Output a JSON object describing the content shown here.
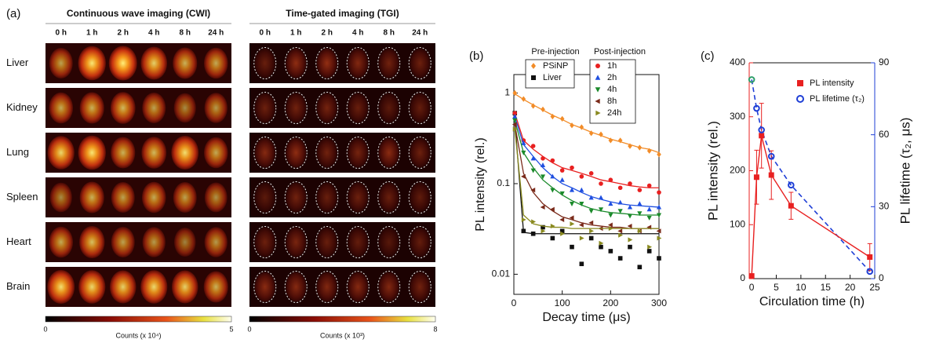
{
  "panel_a": {
    "label": "(a)",
    "times": [
      "0 h",
      "1 h",
      "2 h",
      "4 h",
      "8 h",
      "24 h"
    ],
    "organs": [
      "Liver",
      "Kidney",
      "Lung",
      "Spleen",
      "Heart",
      "Brain"
    ],
    "groups": [
      {
        "title": "Continuous wave imaging (CWI)",
        "colorbar_min": "0",
        "colorbar_max": "5",
        "colorbar_label": "Counts (x 10⁴)"
      },
      {
        "title": "Time-gated imaging (TGI)",
        "colorbar_min": "0",
        "colorbar_max": "8",
        "colorbar_label": "Counts (x 10³)"
      }
    ]
  },
  "chart_data": [
    {
      "type": "scatter",
      "panel_label": "(b)",
      "x_label": "Decay time (μs)",
      "y_label": "PL intensity (rel.)",
      "log_y": true,
      "legend_titles": [
        "Pre-injection",
        "Post-injection"
      ],
      "xlim": [
        0,
        300
      ],
      "xticks": [
        0,
        100,
        200,
        300
      ],
      "ylim": [
        0.006,
        1.6
      ],
      "yticks": [
        0.01,
        0.1,
        1
      ],
      "x": [
        2,
        20,
        40,
        60,
        80,
        100,
        120,
        140,
        160,
        180,
        200,
        220,
        240,
        260,
        280,
        300
      ],
      "series": [
        {
          "name": "PSiNP",
          "color": "#f28c28",
          "marker": "diamond",
          "values": [
            1,
            0.86,
            0.72,
            0.66,
            0.55,
            0.52,
            0.44,
            0.42,
            0.36,
            0.35,
            0.3,
            0.3,
            0.26,
            0.25,
            0.23,
            0.21
          ],
          "fit": [
            0.98,
            0.85,
            0.74,
            0.65,
            0.57,
            0.51,
            0.45,
            0.41,
            0.37,
            0.34,
            0.31,
            0.29,
            0.27,
            0.25,
            0.24,
            0.22
          ]
        },
        {
          "name": "Liver",
          "color": "#111111",
          "marker": "square",
          "values": [
            0.6,
            0.03,
            0.028,
            0.033,
            0.025,
            0.03,
            0.02,
            0.013,
            0.025,
            0.02,
            0.018,
            0.015,
            0.02,
            0.012,
            0.018,
            0.015
          ],
          "fit": [
            0.5,
            0.029,
            0.028,
            0.028,
            0.028,
            0.028,
            0.028,
            0.028,
            0.028,
            0.028,
            0.028,
            0.028,
            0.028,
            0.028,
            0.028,
            0.028
          ]
        },
        {
          "name": "1h",
          "color": "#e82020",
          "marker": "circle",
          "values": [
            0.6,
            0.3,
            0.26,
            0.19,
            0.18,
            0.14,
            0.15,
            0.12,
            0.13,
            0.1,
            0.11,
            0.09,
            0.1,
            0.085,
            0.095,
            0.08
          ],
          "fit": [
            0.6,
            0.3,
            0.24,
            0.2,
            0.17,
            0.15,
            0.14,
            0.13,
            0.12,
            0.11,
            0.105,
            0.1,
            0.095,
            0.092,
            0.09,
            0.09
          ]
        },
        {
          "name": "2h",
          "color": "#1f4fe0",
          "marker": "triangle-up",
          "values": [
            0.55,
            0.28,
            0.19,
            0.16,
            0.12,
            0.11,
            0.085,
            0.085,
            0.07,
            0.07,
            0.06,
            0.062,
            0.055,
            0.06,
            0.052,
            0.055
          ],
          "fit": [
            0.55,
            0.27,
            0.2,
            0.15,
            0.12,
            0.1,
            0.09,
            0.08,
            0.072,
            0.067,
            0.063,
            0.06,
            0.058,
            0.057,
            0.056,
            0.055
          ]
        },
        {
          "name": "4h",
          "color": "#1a8a2a",
          "marker": "triangle-down",
          "values": [
            0.5,
            0.22,
            0.14,
            0.12,
            0.085,
            0.078,
            0.06,
            0.06,
            0.05,
            0.052,
            0.045,
            0.05,
            0.044,
            0.047,
            0.042,
            0.045
          ],
          "fit": [
            0.5,
            0.22,
            0.15,
            0.11,
            0.09,
            0.075,
            0.065,
            0.058,
            0.053,
            0.05,
            0.048,
            0.047,
            0.046,
            0.045,
            0.045,
            0.045
          ]
        },
        {
          "name": "8h",
          "color": "#7a2a1a",
          "marker": "triangle-left",
          "values": [
            0.45,
            0.12,
            0.085,
            0.055,
            0.052,
            0.04,
            0.042,
            0.035,
            0.037,
            0.032,
            0.035,
            0.03,
            0.034,
            0.03,
            0.033,
            0.03
          ],
          "fit": [
            0.45,
            0.13,
            0.08,
            0.06,
            0.05,
            0.043,
            0.04,
            0.037,
            0.035,
            0.034,
            0.033,
            0.033,
            0.032,
            0.032,
            0.032,
            0.032
          ]
        },
        {
          "name": "24h",
          "color": "#8a8a20",
          "marker": "triangle-right",
          "values": [
            0.4,
            0.04,
            0.038,
            0.03,
            0.034,
            0.028,
            0.036,
            0.025,
            0.03,
            0.022,
            0.032,
            0.027,
            0.024,
            0.03,
            0.02,
            0.025
          ],
          "fit": [
            0.4,
            0.045,
            0.036,
            0.034,
            0.033,
            0.033,
            0.032,
            0.032,
            0.032,
            0.032,
            0.032,
            0.032,
            0.032,
            0.032,
            0.032,
            0.032
          ]
        }
      ]
    },
    {
      "type": "dual",
      "panel_label": "(c)",
      "x_label": "Circulation time (h)",
      "y_label": "PL intensity (rel.)",
      "y2_label": "PL lifetime (τ₂, μs)",
      "xlim": [
        -0.5,
        25
      ],
      "xticks": [
        0,
        5,
        10,
        15,
        20,
        25
      ],
      "ylim": [
        0,
        400
      ],
      "yticks": [
        0,
        100,
        200,
        300,
        400
      ],
      "y2lim": [
        0,
        90
      ],
      "y2ticks": [
        0,
        30,
        60,
        90
      ],
      "x": [
        0,
        1,
        2,
        4,
        8,
        24
      ],
      "series": [
        {
          "name": "PL intensity",
          "color": "#e82020",
          "marker": "square",
          "values": [
            5,
            188,
            265,
            192,
            135,
            40
          ],
          "errors": [
            0,
            50,
            60,
            45,
            25,
            25
          ]
        },
        {
          "name": "PL lifetime (τ₂)",
          "color": "#1f3fd6",
          "marker": "circle",
          "axis": "y2",
          "values": [
            83,
            71,
            62,
            51,
            39,
            3
          ],
          "point_colors": [
            "#2e9e6a",
            "#1f3fd6",
            "#1f3fd6",
            "#1f3fd6",
            "#1f3fd6",
            "#1f3fd6"
          ]
        }
      ]
    }
  ]
}
